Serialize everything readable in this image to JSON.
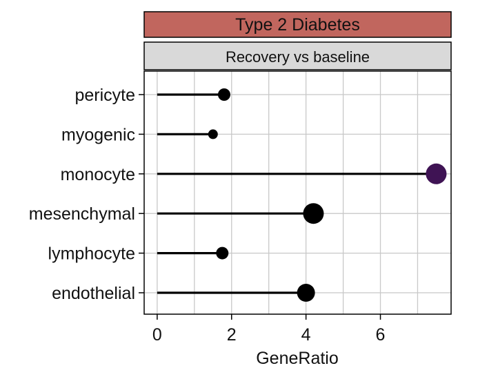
{
  "colors": {
    "strip_outer_fill": "#c1665e",
    "strip_inner_fill": "#d9d9d9",
    "panel_border": "#000000",
    "grid": "#c8c8c8",
    "lollipop": "#000000",
    "highlight_point": "#3f1354"
  },
  "chart_data": {
    "type": "lollipop",
    "facet_outer": "Type 2 Diabetes",
    "facet_inner": "Recovery vs baseline",
    "xlabel": "GeneRatio",
    "ylabel": "",
    "xlim": [
      -0.35,
      7.9
    ],
    "xticks": [
      0,
      2,
      4,
      6
    ],
    "grid": true,
    "categories": [
      "pericyte",
      "myogenic",
      "monocyte",
      "mesenchymal",
      "lymphocyte",
      "endothelial"
    ],
    "values": [
      1.8,
      1.5,
      7.5,
      4.2,
      1.75,
      4.0
    ],
    "point_size_rank": [
      2,
      1,
      4,
      4,
      2,
      3
    ],
    "highlighted": [
      "monocyte"
    ]
  }
}
